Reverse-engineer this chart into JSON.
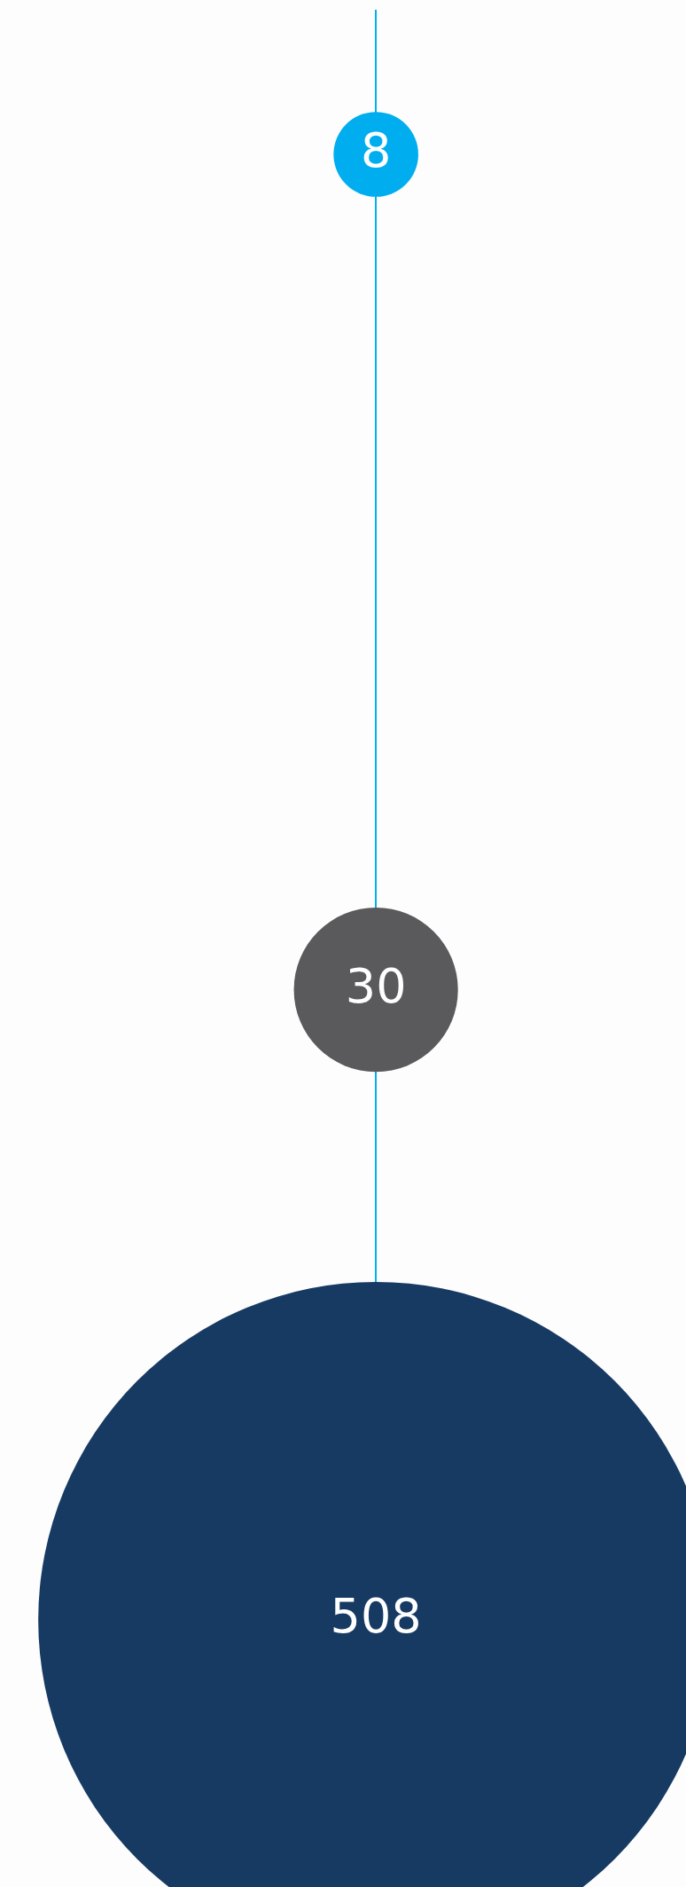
{
  "chart_data": {
    "type": "other",
    "values": [
      8,
      30,
      508
    ],
    "colors": [
      "#00aeef",
      "#5a5a5c",
      "#173a63"
    ],
    "data_labels": true
  }
}
